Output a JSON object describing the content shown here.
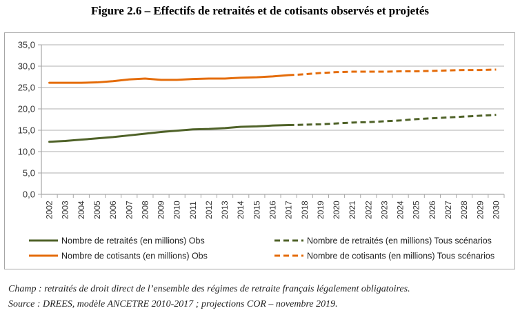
{
  "figure": {
    "title": "Figure 2.6 – Effectifs de retraités et de cotisants observés et projetés",
    "notes": [
      "Champ : retraités de droit direct de l’ensemble des régimes de retraite français légalement obligatoires.",
      "Source : DREES, modèle ANCETRE 2010-2017 ; projections COR – novembre 2019."
    ]
  },
  "chart_data": {
    "type": "line",
    "title": "Figure 2.6 – Effectifs de retraités et de cotisants observés et projetés",
    "xlabel": "",
    "ylabel": "",
    "ylim": [
      0,
      35
    ],
    "yticks": [
      "0,0",
      "5,0",
      "10,0",
      "15,0",
      "20,0",
      "25,0",
      "30,0",
      "35,0"
    ],
    "ytick_values": [
      0,
      5,
      10,
      15,
      20,
      25,
      30,
      35
    ],
    "grid": true,
    "legend_position": "bottom",
    "x": [
      "2002",
      "2003",
      "2004",
      "2005",
      "2006",
      "2007",
      "2008",
      "2009",
      "2010",
      "2011",
      "2012",
      "2013",
      "2014",
      "2015",
      "2016",
      "2017",
      "2018",
      "2019",
      "2020",
      "2021",
      "2022",
      "2023",
      "2024",
      "2025",
      "2026",
      "2027",
      "2028",
      "2029",
      "2030"
    ],
    "series": [
      {
        "name": "Nombre de retraités (en millions) Obs",
        "color": "#4f6228",
        "style": "solid",
        "values": [
          12.3,
          12.5,
          12.8,
          13.1,
          13.4,
          13.8,
          14.2,
          14.6,
          14.9,
          15.2,
          15.3,
          15.5,
          15.8,
          15.9,
          16.1,
          16.2,
          null,
          null,
          null,
          null,
          null,
          null,
          null,
          null,
          null,
          null,
          null,
          null,
          null
        ]
      },
      {
        "name": "Nombre de retraités (en millions) Tous scénarios",
        "color": "#4f6228",
        "style": "dashed",
        "values": [
          null,
          null,
          null,
          null,
          null,
          null,
          null,
          null,
          null,
          null,
          null,
          null,
          null,
          null,
          null,
          16.2,
          16.3,
          16.4,
          16.6,
          16.8,
          16.9,
          17.1,
          17.3,
          17.6,
          17.8,
          18.0,
          18.2,
          18.4,
          18.6
        ]
      },
      {
        "name": "Nombre de cotisants (en millions) Obs",
        "color": "#e46c0a",
        "style": "solid",
        "values": [
          26.1,
          26.1,
          26.1,
          26.2,
          26.5,
          26.9,
          27.1,
          26.8,
          26.8,
          27.0,
          27.1,
          27.1,
          27.3,
          27.4,
          27.6,
          27.9,
          null,
          null,
          null,
          null,
          null,
          null,
          null,
          null,
          null,
          null,
          null,
          null,
          null
        ]
      },
      {
        "name": "Nombre de cotisants (en millions) Tous scénarios",
        "color": "#e46c0a",
        "style": "dashed",
        "values": [
          null,
          null,
          null,
          null,
          null,
          null,
          null,
          null,
          null,
          null,
          null,
          null,
          null,
          null,
          null,
          27.9,
          28.1,
          28.4,
          28.6,
          28.7,
          28.7,
          28.7,
          28.8,
          28.8,
          28.9,
          29.0,
          29.1,
          29.1,
          29.2
        ]
      }
    ]
  }
}
